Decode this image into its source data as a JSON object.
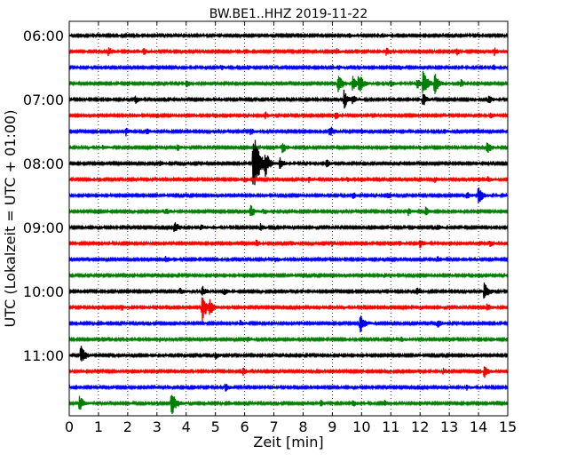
{
  "chart_data": {
    "type": "line",
    "title": "BW.BE1..HHZ 2019-11-22",
    "xlabel": "Zeit  [min]",
    "ylabel": "UTC (Lokalzeit = UTC + 01:00)",
    "xlim": [
      0,
      15
    ],
    "x_ticks": [
      0,
      1,
      2,
      3,
      4,
      5,
      6,
      7,
      8,
      9,
      10,
      11,
      12,
      13,
      14,
      15
    ],
    "y_tick_labels": [
      "06:00",
      "07:00",
      "08:00",
      "09:00",
      "10:00",
      "11:00"
    ],
    "grid": "vertical dotted",
    "legend": "none",
    "trace_colors": [
      "#000000",
      "#ff0000",
      "#0000ff",
      "#008000"
    ],
    "start_time": "06:00",
    "minutes_per_trace": 15,
    "series": [
      {
        "time": "06:00",
        "color": "#000000",
        "events": [
          [
            9.6,
            0.3
          ],
          [
            10.8,
            0.2
          ]
        ]
      },
      {
        "time": "06:15",
        "color": "#ff0000",
        "events": [
          [
            1.35,
            0.6
          ],
          [
            2.55,
            0.5
          ],
          [
            9.15,
            0.4
          ],
          [
            10.85,
            0.5
          ],
          [
            13.25,
            0.5
          ],
          [
            14.55,
            0.5
          ]
        ]
      },
      {
        "time": "06:30",
        "color": "#0000ff",
        "events": [
          [
            5.2,
            0.4
          ],
          [
            6.1,
            0.3
          ],
          [
            9.2,
            0.35
          ],
          [
            11.3,
            0.3
          ],
          [
            14.5,
            0.4
          ]
        ]
      },
      {
        "time": "06:45",
        "color": "#008000",
        "events": [
          [
            4.0,
            0.6
          ],
          [
            9.2,
            1.6
          ],
          [
            9.7,
            1.0
          ],
          [
            9.9,
            1.6
          ],
          [
            11.0,
            0.5
          ],
          [
            11.9,
            0.8
          ],
          [
            12.5,
            1.4
          ],
          [
            12.1,
            2.0
          ],
          [
            13.4,
            0.5
          ]
        ]
      },
      {
        "time": "07:00",
        "color": "#000000",
        "events": [
          [
            2.25,
            0.6
          ],
          [
            9.4,
            1.4
          ],
          [
            9.7,
            0.6
          ],
          [
            12.1,
            1.0
          ],
          [
            14.35,
            0.6
          ]
        ]
      },
      {
        "time": "07:15",
        "color": "#ff0000",
        "events": [
          [
            6.7,
            0.5
          ],
          [
            9.1,
            0.6
          ],
          [
            14.4,
            0.5
          ]
        ]
      },
      {
        "time": "07:30",
        "color": "#0000ff",
        "events": [
          [
            1.95,
            0.6
          ],
          [
            2.65,
            0.4
          ],
          [
            6.2,
            0.5
          ],
          [
            8.9,
            1.0
          ],
          [
            10.0,
            0.4
          ],
          [
            12.8,
            0.4
          ]
        ]
      },
      {
        "time": "07:45",
        "color": "#008000",
        "events": [
          [
            1.15,
            0.3
          ],
          [
            3.7,
            0.5
          ],
          [
            7.3,
            0.8
          ],
          [
            14.3,
            1.0
          ]
        ]
      },
      {
        "time": "08:00",
        "color": "#000000",
        "events": [
          [
            3.1,
            0.4
          ],
          [
            6.3,
            4.5
          ],
          [
            6.7,
            1.5
          ],
          [
            7.2,
            0.8
          ],
          [
            8.8,
            0.6
          ]
        ]
      },
      {
        "time": "08:15",
        "color": "#ff0000",
        "events": [
          [
            6.0,
            0.4
          ],
          [
            8.2,
            0.4
          ],
          [
            9.5,
            0.3
          ],
          [
            12.5,
            0.4
          ],
          [
            14.3,
            0.4
          ]
        ]
      },
      {
        "time": "08:30",
        "color": "#0000ff",
        "events": [
          [
            9.7,
            0.5
          ],
          [
            10.9,
            0.5
          ],
          [
            13.6,
            0.6
          ],
          [
            14.0,
            1.5
          ]
        ]
      },
      {
        "time": "08:45",
        "color": "#008000",
        "events": [
          [
            3.3,
            0.5
          ],
          [
            6.2,
            1.0
          ],
          [
            6.65,
            0.4
          ],
          [
            11.6,
            0.5
          ],
          [
            12.2,
            0.6
          ]
        ]
      },
      {
        "time": "09:00",
        "color": "#000000",
        "events": [
          [
            3.6,
            1.0
          ],
          [
            4.5,
            0.4
          ],
          [
            6.55,
            0.5
          ],
          [
            12.6,
            0.4
          ]
        ]
      },
      {
        "time": "09:15",
        "color": "#ff0000",
        "events": [
          [
            6.4,
            0.5
          ],
          [
            7.6,
            0.4
          ],
          [
            9.0,
            0.4
          ],
          [
            11.3,
            0.4
          ],
          [
            12.0,
            0.6
          ],
          [
            14.4,
            0.5
          ]
        ]
      },
      {
        "time": "09:30",
        "color": "#0000ff",
        "events": [
          [
            3.3,
            0.5
          ],
          [
            7.05,
            0.4
          ],
          [
            12.6,
            0.5
          ]
        ]
      },
      {
        "time": "09:45",
        "color": "#008000",
        "events": [
          [
            10.8,
            0.3
          ]
        ]
      },
      {
        "time": "10:00",
        "color": "#000000",
        "events": [
          [
            3.8,
            0.5
          ],
          [
            4.55,
            0.8
          ],
          [
            5.3,
            0.5
          ],
          [
            11.9,
            0.6
          ],
          [
            14.2,
            1.5
          ]
        ]
      },
      {
        "time": "10:15",
        "color": "#ff0000",
        "events": [
          [
            1.8,
            0.4
          ],
          [
            4.55,
            2.0
          ],
          [
            4.8,
            1.0
          ],
          [
            14.3,
            0.6
          ]
        ]
      },
      {
        "time": "10:30",
        "color": "#0000ff",
        "events": [
          [
            5.85,
            0.4
          ],
          [
            9.95,
            1.6
          ],
          [
            12.6,
            0.6
          ]
        ]
      },
      {
        "time": "10:45",
        "color": "#008000",
        "events": [
          [
            3.1,
            0.3
          ],
          [
            6.1,
            0.4
          ],
          [
            11.35,
            0.4
          ]
        ]
      },
      {
        "time": "11:00",
        "color": "#000000",
        "events": [
          [
            0.4,
            1.4
          ],
          [
            5.0,
            0.5
          ]
        ]
      },
      {
        "time": "11:15",
        "color": "#ff0000",
        "events": [
          [
            5.95,
            0.5
          ],
          [
            12.8,
            0.4
          ],
          [
            14.2,
            1.0
          ]
        ]
      },
      {
        "time": "11:30",
        "color": "#0000ff",
        "events": [
          [
            5.35,
            0.6
          ],
          [
            13.6,
            0.3
          ]
        ]
      },
      {
        "time": "11:45",
        "color": "#008000",
        "events": [
          [
            0.35,
            1.2
          ],
          [
            3.5,
            2.0
          ],
          [
            8.6,
            0.5
          ],
          [
            9.7,
            0.6
          ],
          [
            10.8,
            0.4
          ]
        ]
      }
    ]
  }
}
